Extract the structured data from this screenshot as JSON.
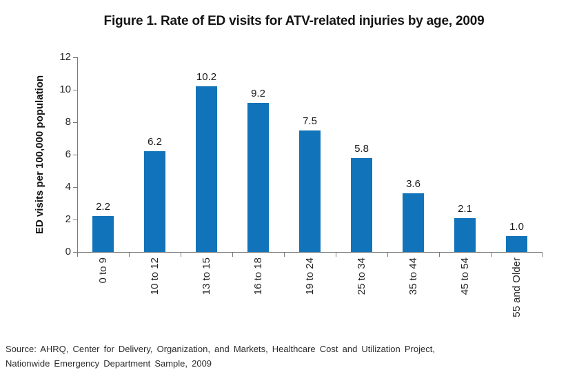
{
  "figure": {
    "title": "Figure 1. Rate of ED visits for ATV-related injuries by age, 2009"
  },
  "source": {
    "line1": "Source: AHRQ, Center for Delivery, Organization, and Markets, Healthcare Cost and Utilization Project,",
    "line2": "Nationwide Emergency Department Sample, 2009"
  },
  "colors": {
    "bar": "#1173b9",
    "axis": "#7a7a7a",
    "text": "#1a1a1a"
  },
  "chart_data": {
    "type": "bar",
    "title": "Figure 1. Rate of ED visits for ATV-related injuries by age, 2009",
    "categories": [
      "0 to 9",
      "10 to 12",
      "13 to 15",
      "16 to 18",
      "19 to 24",
      "25 to 34",
      "35 to 44",
      "45 to 54",
      "55 and Older"
    ],
    "values": [
      2.2,
      6.2,
      10.2,
      9.2,
      7.5,
      5.8,
      3.6,
      2.1,
      1.0
    ],
    "value_labels": [
      "2.2",
      "6.2",
      "10.2",
      "9.2",
      "7.5",
      "5.8",
      "3.6",
      "2.1",
      "1.0"
    ],
    "xlabel": "",
    "ylabel": "ED visits per 100,000 population",
    "ylim": [
      0,
      12
    ],
    "yticks": [
      0,
      2,
      4,
      6,
      8,
      10,
      12
    ],
    "grid": false,
    "legend_position": "none",
    "bar_color": "#1173b9"
  }
}
